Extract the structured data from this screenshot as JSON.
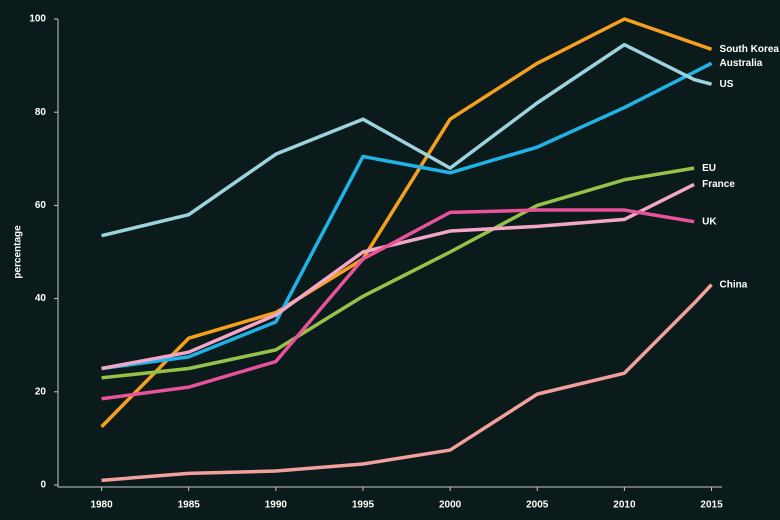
{
  "chart_data": {
    "type": "line",
    "y_label": "percentage",
    "xlim": [
      1977.5,
      2015.6
    ],
    "xticks": [
      1980,
      1985,
      1990,
      1995,
      2000,
      2005,
      2010,
      2015
    ],
    "ylim": [
      0,
      100
    ],
    "yticks": [
      0,
      20,
      40,
      60,
      80,
      100
    ],
    "series": [
      {
        "name": "South Korea",
        "color": "#f5a11e",
        "x": [
          1980,
          1985,
          1990,
          1995,
          2000,
          2005,
          2010,
          2015
        ],
        "values": [
          12.5,
          31.5,
          37,
          48.5,
          78.5,
          90.5,
          100,
          93.5
        ]
      },
      {
        "name": "Australia",
        "color": "#1eb4e8",
        "x": [
          1980,
          1985,
          1990,
          1995,
          2000,
          2005,
          2010,
          2015
        ],
        "values": [
          25,
          27.5,
          35,
          70.5,
          67,
          72.5,
          81,
          90.5
        ]
      },
      {
        "name": "US",
        "color": "#9dd3dc",
        "x": [
          1980,
          1985,
          1990,
          1995,
          2000,
          2005,
          2010,
          2014,
          2015
        ],
        "values": [
          53.5,
          58,
          71,
          78.5,
          68,
          82,
          94.5,
          87,
          86
        ]
      },
      {
        "name": "EU",
        "color": "#97c24a",
        "x": [
          1980,
          1985,
          1990,
          1995,
          2000,
          2005,
          2010,
          2014
        ],
        "values": [
          23,
          25,
          29,
          40.5,
          50,
          60,
          65.5,
          68
        ]
      },
      {
        "name": "France",
        "color": "#f4a6c9",
        "x": [
          1980,
          1985,
          1990,
          1995,
          2000,
          2005,
          2010,
          2014
        ],
        "values": [
          25,
          28.5,
          36.5,
          50,
          54.5,
          55.5,
          57,
          64.5
        ]
      },
      {
        "name": "UK",
        "color": "#e8539a",
        "x": [
          1980,
          1985,
          1990,
          1995,
          2000,
          2005,
          2010,
          2014
        ],
        "values": [
          18.5,
          21,
          26.5,
          48.5,
          58.5,
          59,
          59,
          56.5
        ]
      },
      {
        "name": "China",
        "color": "#f2a09c",
        "x": [
          1980,
          1985,
          1990,
          1995,
          2000,
          2005,
          2010,
          2014,
          2015
        ],
        "values": [
          1,
          2.5,
          3,
          4.5,
          7.5,
          19.5,
          24,
          39,
          43
        ]
      }
    ]
  }
}
